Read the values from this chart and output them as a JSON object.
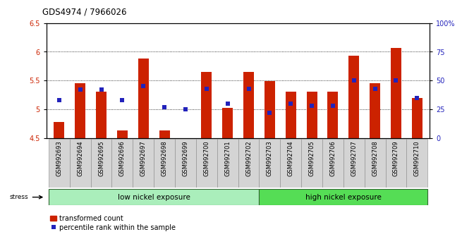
{
  "title": "GDS4974 / 7966026",
  "samples": [
    "GSM992693",
    "GSM992694",
    "GSM992695",
    "GSM992696",
    "GSM992697",
    "GSM992698",
    "GSM992699",
    "GSM992700",
    "GSM992701",
    "GSM992702",
    "GSM992703",
    "GSM992704",
    "GSM992705",
    "GSM992706",
    "GSM992707",
    "GSM992708",
    "GSM992709",
    "GSM992710"
  ],
  "red_values": [
    4.78,
    5.45,
    5.3,
    4.63,
    5.88,
    4.63,
    4.5,
    5.65,
    5.02,
    5.65,
    5.49,
    5.3,
    5.3,
    5.3,
    5.93,
    5.45,
    6.07,
    5.2
  ],
  "blue_values": [
    33,
    42,
    42,
    33,
    45,
    27,
    25,
    43,
    30,
    43,
    22,
    30,
    28,
    28,
    50,
    43,
    50,
    35
  ],
  "ymin": 4.5,
  "ymax": 6.5,
  "yticks_left": [
    4.5,
    5.0,
    5.5,
    6.0,
    6.5
  ],
  "ytick_labels_left": [
    "4.5",
    "5",
    "5.5",
    "6",
    "6.5"
  ],
  "yticks_right": [
    0,
    25,
    50,
    75,
    100
  ],
  "ytick_labels_right": [
    "0",
    "25",
    "50",
    "75",
    "100%"
  ],
  "low_nickel_count": 10,
  "group1_label": "low nickel exposure",
  "group2_label": "high nickel exposure",
  "stress_label": "stress",
  "legend_red": "transformed count",
  "legend_blue": "percentile rank within the sample",
  "red_color": "#CC2200",
  "blue_color": "#2222BB",
  "bar_width": 0.5,
  "cell_bg": "#D4D4D4",
  "cell_edge": "#888888",
  "low_bg": "#AAEEBB",
  "high_bg": "#55DD55",
  "group_edge": "#336633"
}
